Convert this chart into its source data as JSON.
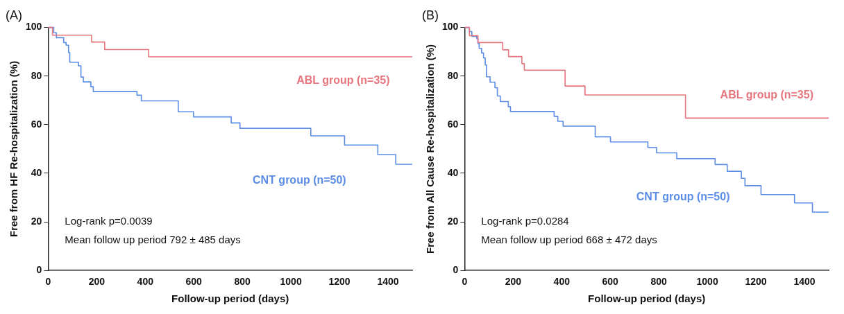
{
  "chart_data": [
    {
      "type": "step",
      "title": "(A)",
      "xlabel": "Follow-up period (days)",
      "ylabel": "Free from HF Re-hospitalization (%)",
      "xlim": [
        0,
        1500
      ],
      "xticks": [
        0,
        200,
        400,
        600,
        800,
        1000,
        1200,
        1400
      ],
      "ylim": [
        0,
        100
      ],
      "yticks": [
        0,
        20,
        40,
        60,
        80,
        100
      ],
      "grid": false,
      "legend": false,
      "marker": "none",
      "annotations": [
        "Log-rank p=0.0039",
        "Mean follow up period 792 ± 485 days"
      ],
      "series": [
        {
          "name": "ABL group (n=35)",
          "color": "#e8757e",
          "x": [
            0,
            18,
            179,
            233,
            414,
            1500
          ],
          "values": [
            100,
            96.8,
            94,
            90.9,
            87.9,
            87.9
          ]
        },
        {
          "name": "CNT group (n=50)",
          "color": "#5b8de6",
          "x": [
            0,
            23,
            34,
            64,
            74,
            84,
            89,
            125,
            135,
            145,
            176,
            186,
            366,
            384,
            536,
            599,
            754,
            790,
            1082,
            1221,
            1358,
            1432,
            1500
          ],
          "values": [
            100,
            97.8,
            95.8,
            93.8,
            92.7,
            89.7,
            85.7,
            84.2,
            79.6,
            77.6,
            75.6,
            73.6,
            72.1,
            69.8,
            65.3,
            63.2,
            60.7,
            58.5,
            55.4,
            51.6,
            47.7,
            43.7,
            43.7
          ]
        }
      ]
    },
    {
      "type": "step",
      "title": "(B)",
      "xlabel": "Follow-up period (days)",
      "ylabel": "Free from All Cause Re-hospitalization (%)",
      "xlim": [
        0,
        1500
      ],
      "xticks": [
        0,
        200,
        400,
        600,
        800,
        1000,
        1200,
        1400
      ],
      "ylim": [
        0,
        100
      ],
      "yticks": [
        0,
        20,
        40,
        60,
        80,
        100
      ],
      "grid": false,
      "legend": false,
      "marker": "none",
      "annotations": [
        "Log-rank p=0.0284",
        "Mean follow up period 668 ± 472 days"
      ],
      "series": [
        {
          "name": "ABL group (n=35)",
          "color": "#e8757e",
          "x": [
            0,
            20,
            55,
            157,
            181,
            236,
            246,
            414,
            496,
            910,
            1500
          ],
          "values": [
            100,
            96.6,
            93.8,
            90.8,
            88,
            85.1,
            82.4,
            75.9,
            72.2,
            62.7,
            62.7
          ]
        },
        {
          "name": "CNT group (n=50)",
          "color": "#5b8de6",
          "x": [
            0,
            20,
            30,
            50,
            55,
            60,
            70,
            78,
            85,
            90,
            105,
            125,
            135,
            147,
            180,
            189,
            369,
            384,
            406,
            538,
            601,
            755,
            791,
            874,
            1032,
            1082,
            1140,
            1155,
            1221,
            1359,
            1433,
            1500
          ],
          "values": [
            100,
            98.3,
            96.3,
            95.4,
            93.4,
            91.4,
            89.5,
            87.5,
            84.6,
            79.7,
            77.5,
            75.2,
            71.8,
            69.5,
            67.4,
            65.4,
            63.4,
            61.4,
            59.4,
            55,
            52.9,
            50.6,
            48.4,
            46,
            43.6,
            40.8,
            37.9,
            34.9,
            31.2,
            27.8,
            24,
            24
          ]
        }
      ]
    }
  ]
}
